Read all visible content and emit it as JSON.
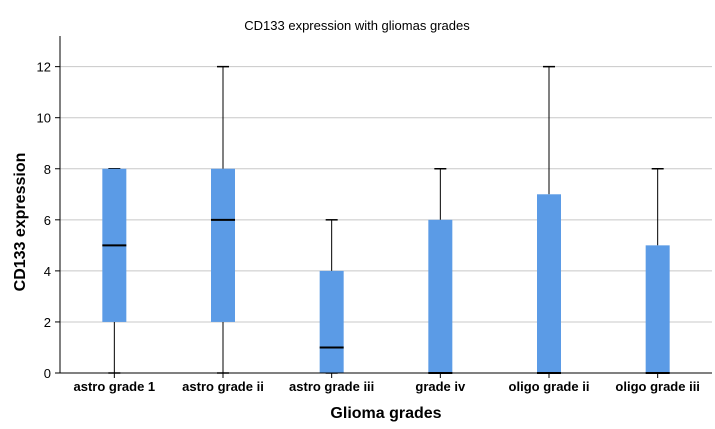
{
  "chart_data": {
    "type": "box",
    "title": "CD133 expression with gliomas grades",
    "xlabel": "Glioma grades",
    "ylabel": "CD133 expression",
    "ylim": [
      0,
      13.2
    ],
    "yticks": [
      0,
      2,
      4,
      6,
      8,
      10,
      12
    ],
    "grid": "horizontal",
    "box_color": "#5b9be6",
    "categories": [
      "astro grade 1",
      "astro grade ii",
      "astro grade iii",
      "grade iv",
      "oligo grade ii",
      "oligo grade iii"
    ],
    "boxes": [
      {
        "min": 0,
        "q1": 2,
        "median": 5,
        "q3": 8,
        "max": 8
      },
      {
        "min": 0,
        "q1": 2,
        "median": 6,
        "q3": 8,
        "max": 12
      },
      {
        "min": 0,
        "q1": 0,
        "median": 1,
        "q3": 4,
        "max": 6
      },
      {
        "min": 0,
        "q1": 0,
        "median": 0,
        "q3": 6,
        "max": 8
      },
      {
        "min": 0,
        "q1": 0,
        "median": 0,
        "q3": 7,
        "max": 12
      },
      {
        "min": 0,
        "q1": 0,
        "median": 0,
        "q3": 5,
        "max": 8
      }
    ]
  }
}
